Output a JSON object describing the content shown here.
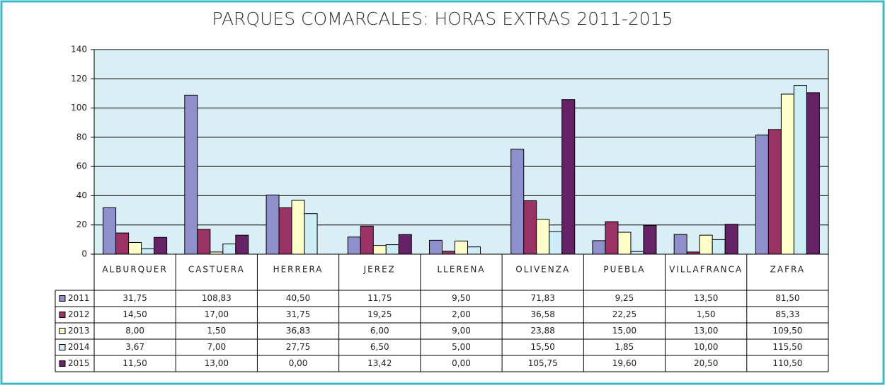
{
  "chart_data": {
    "type": "bar",
    "title": "PARQUES COMARCALES: HORAS EXTRAS 2011-2015",
    "categories": [
      "ALBURQUER",
      "CASTUERA",
      "HERRERA",
      "JEREZ",
      "LLERENA",
      "OLIVENZA",
      "PUEBLA",
      "VILLAFRANCA",
      "ZAFRA"
    ],
    "series": [
      {
        "name": "2011",
        "color": "#8f8fcc",
        "values": [
          31.75,
          108.83,
          40.5,
          11.75,
          9.5,
          71.83,
          9.25,
          13.5,
          81.5
        ],
        "value_labels": [
          "31,75",
          "108,83",
          "40,50",
          "11,75",
          "9,50",
          "71,83",
          "9,25",
          "13,50",
          "81,50"
        ]
      },
      {
        "name": "2012",
        "color": "#993366",
        "values": [
          14.5,
          17,
          31.75,
          19.25,
          2,
          36.58,
          22.25,
          1.5,
          85.33
        ],
        "value_labels": [
          "14,50",
          "17,00",
          "31,75",
          "19,25",
          "2,00",
          "36,58",
          "22,25",
          "1,50",
          "85,33"
        ]
      },
      {
        "name": "2013",
        "color": "#ffffcc",
        "values": [
          8,
          1.5,
          36.83,
          6,
          9,
          23.88,
          15,
          13,
          109.5
        ],
        "value_labels": [
          "8,00",
          "1,50",
          "36,83",
          "6,00",
          "9,00",
          "23,88",
          "15,00",
          "13,00",
          "109,50"
        ]
      },
      {
        "name": "2014",
        "color": "#ccecf6",
        "values": [
          3.67,
          7,
          27.75,
          6.5,
          5,
          15.5,
          1.85,
          10,
          115.5
        ],
        "value_labels": [
          "3,67",
          "7,00",
          "27,75",
          "6,50",
          "5,00",
          "15,50",
          "1,85",
          "10,00",
          "115,50"
        ]
      },
      {
        "name": "2015",
        "color": "#662266",
        "values": [
          11.5,
          13,
          0,
          13.42,
          0,
          105.75,
          19.6,
          20.5,
          110.5
        ],
        "value_labels": [
          "11,50",
          "13,00",
          "0,00",
          "13,42",
          "0,00",
          "105,75",
          "19,60",
          "20,50",
          "110,50"
        ]
      }
    ],
    "ylim": [
      0,
      140
    ],
    "yticks": [
      0,
      20,
      40,
      60,
      80,
      100,
      120,
      140
    ],
    "grid": true,
    "plot_background": "#d9eef5"
  }
}
